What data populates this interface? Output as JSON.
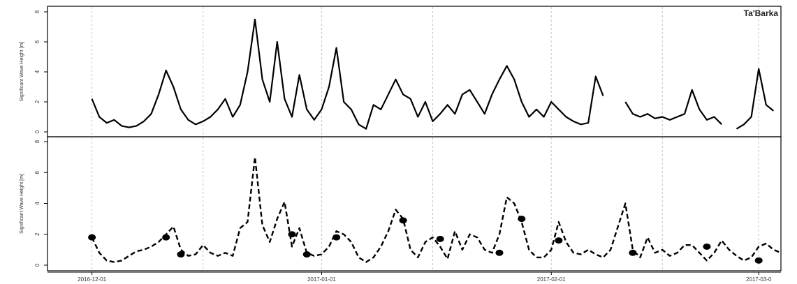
{
  "chart_data": [
    {
      "type": "line",
      "panel": "top",
      "station_label": "Ta'Barka",
      "ylabel": "Significant Wave Height [m]",
      "ylim": [
        0,
        8
      ],
      "yticks": [
        "0",
        "2",
        "4",
        "6",
        "8"
      ],
      "xlim": [
        "2016-11-25",
        "2017-03-04"
      ],
      "grid": "vertical dotted at dates",
      "series": [
        {
          "style": "solid",
          "points": [
            [
              "2016-12-01",
              2.2
            ],
            [
              "2016-12-02",
              1.0
            ],
            [
              "2016-12-03",
              0.6
            ],
            [
              "2016-12-04",
              0.8
            ],
            [
              "2016-12-05",
              0.4
            ],
            [
              "2016-12-06",
              0.3
            ],
            [
              "2016-12-07",
              0.4
            ],
            [
              "2016-12-08",
              0.7
            ],
            [
              "2016-12-09",
              1.2
            ],
            [
              "2016-12-10",
              2.5
            ],
            [
              "2016-12-11",
              4.1
            ],
            [
              "2016-12-12",
              3.0
            ],
            [
              "2016-12-13",
              1.5
            ],
            [
              "2016-12-14",
              0.8
            ],
            [
              "2016-12-15",
              0.5
            ],
            [
              "2016-12-16",
              0.7
            ],
            [
              "2016-12-17",
              1.0
            ],
            [
              "2016-12-18",
              1.5
            ],
            [
              "2016-12-19",
              2.2
            ],
            [
              "2016-12-20",
              1.0
            ],
            [
              "2016-12-21",
              1.8
            ],
            [
              "2016-12-22",
              4.0
            ],
            [
              "2016-12-23",
              7.5
            ],
            [
              "2016-12-24",
              3.5
            ],
            [
              "2016-12-25",
              2.0
            ],
            [
              "2016-12-26",
              6.0
            ],
            [
              "2016-12-27",
              2.2
            ],
            [
              "2016-12-28",
              1.0
            ],
            [
              "2016-12-29",
              3.8
            ],
            [
              "2016-12-30",
              1.5
            ],
            [
              "2016-12-31",
              0.8
            ],
            [
              "2017-01-01",
              1.5
            ],
            [
              "2017-01-02",
              3.0
            ],
            [
              "2017-01-03",
              5.6
            ],
            [
              "2017-01-04",
              2.0
            ],
            [
              "2017-01-05",
              1.5
            ],
            [
              "2017-01-06",
              0.5
            ],
            [
              "2017-01-07",
              0.2
            ],
            [
              "2017-01-08",
              1.8
            ],
            [
              "2017-01-09",
              1.5
            ],
            [
              "2017-01-10",
              2.5
            ],
            [
              "2017-01-11",
              3.5
            ],
            [
              "2017-01-12",
              2.5
            ],
            [
              "2017-01-13",
              2.2
            ],
            [
              "2017-01-14",
              1.0
            ],
            [
              "2017-01-15",
              2.0
            ],
            [
              "2017-01-16",
              0.7
            ],
            [
              "2017-01-17",
              1.2
            ],
            [
              "2017-01-18",
              1.8
            ],
            [
              "2017-01-19",
              1.2
            ],
            [
              "2017-01-20",
              2.5
            ],
            [
              "2017-01-21",
              2.8
            ],
            [
              "2017-01-22",
              2.0
            ],
            [
              "2017-01-23",
              1.2
            ],
            [
              "2017-01-24",
              2.5
            ],
            [
              "2017-01-25",
              3.5
            ],
            [
              "2017-01-26",
              4.4
            ],
            [
              "2017-01-27",
              3.5
            ],
            [
              "2017-01-28",
              2.0
            ],
            [
              "2017-01-29",
              1.0
            ],
            [
              "2017-01-30",
              1.5
            ],
            [
              "2017-01-31",
              1.0
            ],
            [
              "2017-02-01",
              2.0
            ],
            [
              "2017-02-02",
              1.5
            ],
            [
              "2017-02-03",
              1.0
            ],
            [
              "2017-02-04",
              0.7
            ],
            [
              "2017-02-05",
              0.5
            ],
            [
              "2017-02-06",
              0.6
            ],
            [
              "2017-02-07",
              3.7
            ],
            [
              "2017-02-08",
              2.4
            ],
            null,
            [
              "2017-02-11",
              2.0
            ],
            [
              "2017-02-12",
              1.2
            ],
            [
              "2017-02-13",
              1.0
            ],
            [
              "2017-02-14",
              1.2
            ],
            [
              "2017-02-15",
              0.9
            ],
            [
              "2017-02-16",
              1.0
            ],
            [
              "2017-02-17",
              0.8
            ],
            [
              "2017-02-18",
              1.0
            ],
            [
              "2017-02-19",
              1.2
            ],
            [
              "2017-02-20",
              2.8
            ],
            [
              "2017-02-21",
              1.5
            ],
            [
              "2017-02-22",
              0.8
            ],
            [
              "2017-02-23",
              1.0
            ],
            [
              "2017-02-24",
              0.5
            ],
            null,
            [
              "2017-02-26",
              0.2
            ],
            [
              "2017-02-27",
              0.5
            ],
            [
              "2017-02-28",
              1.0
            ],
            [
              "2017-03-01",
              4.2
            ],
            [
              "2017-03-02",
              1.8
            ],
            [
              "2017-03-03",
              1.4
            ]
          ]
        }
      ]
    },
    {
      "type": "line",
      "panel": "bottom",
      "ylabel": "Significant Wave Height [m]",
      "ylim": [
        0,
        8
      ],
      "yticks": [
        "0",
        "2",
        "4",
        "6",
        "8"
      ],
      "xlim": [
        "2016-11-25",
        "2017-03-04"
      ],
      "xticks": [
        "2016-12-01",
        "2017-01-01",
        "2017-02-01",
        "2017-03-01"
      ],
      "xtick_labels": [
        "2016-12-01",
        "2017-01-01",
        "2017-02-01",
        "2017-03-0"
      ],
      "grid": "vertical dotted at dates",
      "series": [
        {
          "style": "dashed",
          "points": [
            [
              "2016-12-01",
              1.8
            ],
            [
              "2016-12-02",
              0.8
            ],
            [
              "2016-12-03",
              0.3
            ],
            [
              "2016-12-04",
              0.2
            ],
            [
              "2016-12-05",
              0.3
            ],
            [
              "2016-12-06",
              0.6
            ],
            [
              "2016-12-07",
              0.9
            ],
            [
              "2016-12-08",
              1.0
            ],
            [
              "2016-12-09",
              1.2
            ],
            [
              "2016-12-10",
              1.5
            ],
            [
              "2016-12-11",
              2.0
            ],
            [
              "2016-12-12",
              2.5
            ],
            [
              "2016-12-13",
              1.0
            ],
            [
              "2016-12-14",
              0.6
            ],
            [
              "2016-12-15",
              0.7
            ],
            [
              "2016-12-16",
              1.3
            ],
            [
              "2016-12-17",
              0.8
            ],
            [
              "2016-12-18",
              0.6
            ],
            [
              "2016-12-19",
              0.8
            ],
            [
              "2016-12-20",
              0.6
            ],
            [
              "2016-12-21",
              2.4
            ],
            [
              "2016-12-22",
              2.8
            ],
            [
              "2016-12-23",
              7.0
            ],
            [
              "2016-12-24",
              2.6
            ],
            [
              "2016-12-25",
              1.5
            ],
            [
              "2016-12-26",
              3.0
            ],
            [
              "2016-12-27",
              4.1
            ],
            [
              "2016-12-28",
              1.2
            ],
            [
              "2016-12-29",
              2.4
            ],
            [
              "2016-12-30",
              0.8
            ],
            [
              "2016-12-31",
              0.6
            ],
            [
              "2017-01-01",
              0.7
            ],
            [
              "2017-01-02",
              1.2
            ],
            [
              "2017-01-03",
              2.2
            ],
            [
              "2017-01-04",
              2.0
            ],
            [
              "2017-01-05",
              1.5
            ],
            [
              "2017-01-06",
              0.5
            ],
            [
              "2017-01-07",
              0.2
            ],
            [
              "2017-01-08",
              0.5
            ],
            [
              "2017-01-09",
              1.2
            ],
            [
              "2017-01-10",
              2.2
            ],
            [
              "2017-01-11",
              3.6
            ],
            [
              "2017-01-12",
              3.0
            ],
            [
              "2017-01-13",
              1.0
            ],
            [
              "2017-01-14",
              0.5
            ],
            [
              "2017-01-15",
              1.5
            ],
            [
              "2017-01-16",
              1.8
            ],
            [
              "2017-01-17",
              1.2
            ],
            [
              "2017-01-18",
              0.4
            ],
            [
              "2017-01-19",
              2.2
            ],
            [
              "2017-01-20",
              1.0
            ],
            [
              "2017-01-21",
              2.0
            ],
            [
              "2017-01-22",
              1.8
            ],
            [
              "2017-01-23",
              1.0
            ],
            [
              "2017-01-24",
              0.8
            ],
            [
              "2017-01-25",
              2.0
            ],
            [
              "2017-01-26",
              4.4
            ],
            [
              "2017-01-27",
              4.0
            ],
            [
              "2017-01-28",
              2.8
            ],
            [
              "2017-01-29",
              1.0
            ],
            [
              "2017-01-30",
              0.5
            ],
            [
              "2017-01-31",
              0.5
            ],
            [
              "2017-02-01",
              1.0
            ],
            [
              "2017-02-02",
              2.8
            ],
            [
              "2017-02-03",
              1.5
            ],
            [
              "2017-02-04",
              0.8
            ],
            [
              "2017-02-05",
              0.7
            ],
            [
              "2017-02-06",
              1.0
            ],
            [
              "2017-02-07",
              0.7
            ],
            [
              "2017-02-08",
              0.5
            ],
            [
              "2017-02-09",
              1.0
            ],
            [
              "2017-02-10",
              2.5
            ],
            [
              "2017-02-11",
              4.0
            ],
            [
              "2017-02-12",
              1.0
            ],
            [
              "2017-02-13",
              0.5
            ],
            [
              "2017-02-14",
              1.8
            ],
            [
              "2017-02-15",
              0.8
            ],
            [
              "2017-02-16",
              1.0
            ],
            [
              "2017-02-17",
              0.6
            ],
            [
              "2017-02-18",
              0.8
            ],
            [
              "2017-02-19",
              1.3
            ],
            [
              "2017-02-20",
              1.3
            ],
            [
              "2017-02-21",
              0.8
            ],
            [
              "2017-02-22",
              0.3
            ],
            [
              "2017-02-23",
              0.8
            ],
            [
              "2017-02-24",
              1.6
            ],
            [
              "2017-02-25",
              1.0
            ],
            [
              "2017-02-26",
              0.6
            ],
            [
              "2017-02-27",
              0.3
            ],
            [
              "2017-02-28",
              0.5
            ],
            [
              "2017-03-01",
              1.2
            ],
            [
              "2017-03-02",
              1.4
            ],
            [
              "2017-03-03",
              1.0
            ],
            [
              "2017-03-04",
              0.8
            ]
          ]
        },
        {
          "style": "points",
          "points": [
            [
              "2016-12-01",
              1.8
            ],
            [
              "2016-12-11",
              1.8
            ],
            [
              "2016-12-13",
              0.7
            ],
            [
              "2016-12-28",
              2.0
            ],
            [
              "2016-12-30",
              0.7
            ],
            [
              "2017-01-03",
              1.8
            ],
            [
              "2017-01-12",
              2.9
            ],
            [
              "2017-01-17",
              1.7
            ],
            [
              "2017-01-25",
              0.8
            ],
            [
              "2017-01-28",
              3.0
            ],
            [
              "2017-02-02",
              1.6
            ],
            [
              "2017-02-12",
              0.8
            ],
            [
              "2017-02-22",
              1.2
            ],
            [
              "2017-03-01",
              0.3
            ]
          ]
        }
      ]
    }
  ]
}
